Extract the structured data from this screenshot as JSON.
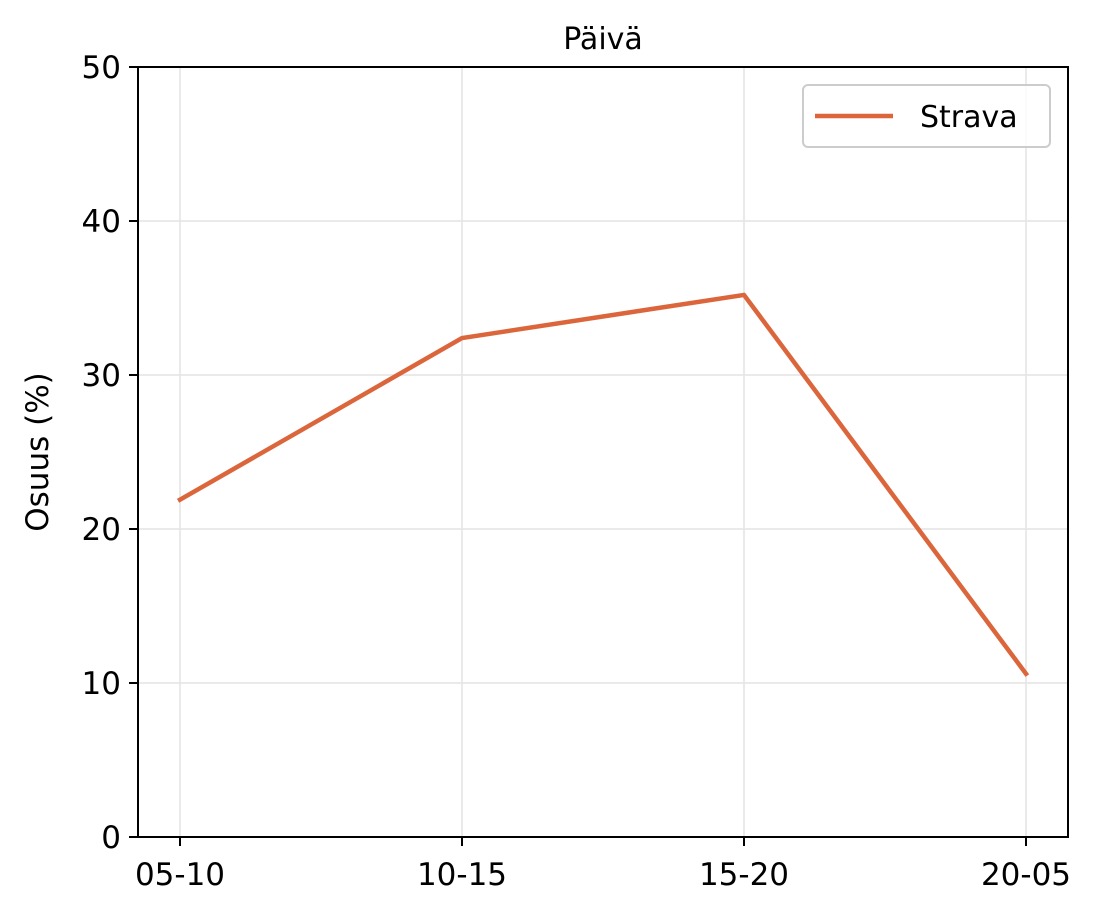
{
  "chart_data": {
    "type": "line",
    "title": "Päivä",
    "xlabel": "",
    "ylabel": "Osuus (%)",
    "categories": [
      "05-10",
      "10-15",
      "15-20",
      "20-05"
    ],
    "series": [
      {
        "name": "Strava",
        "values": [
          21.9,
          32.4,
          35.2,
          10.6
        ],
        "color": "#dc663c"
      }
    ],
    "ylim": [
      0,
      50
    ],
    "yticks": [
      "0",
      "10",
      "20",
      "30",
      "40",
      "50"
    ],
    "grid": true,
    "legend_position": "top-right"
  }
}
